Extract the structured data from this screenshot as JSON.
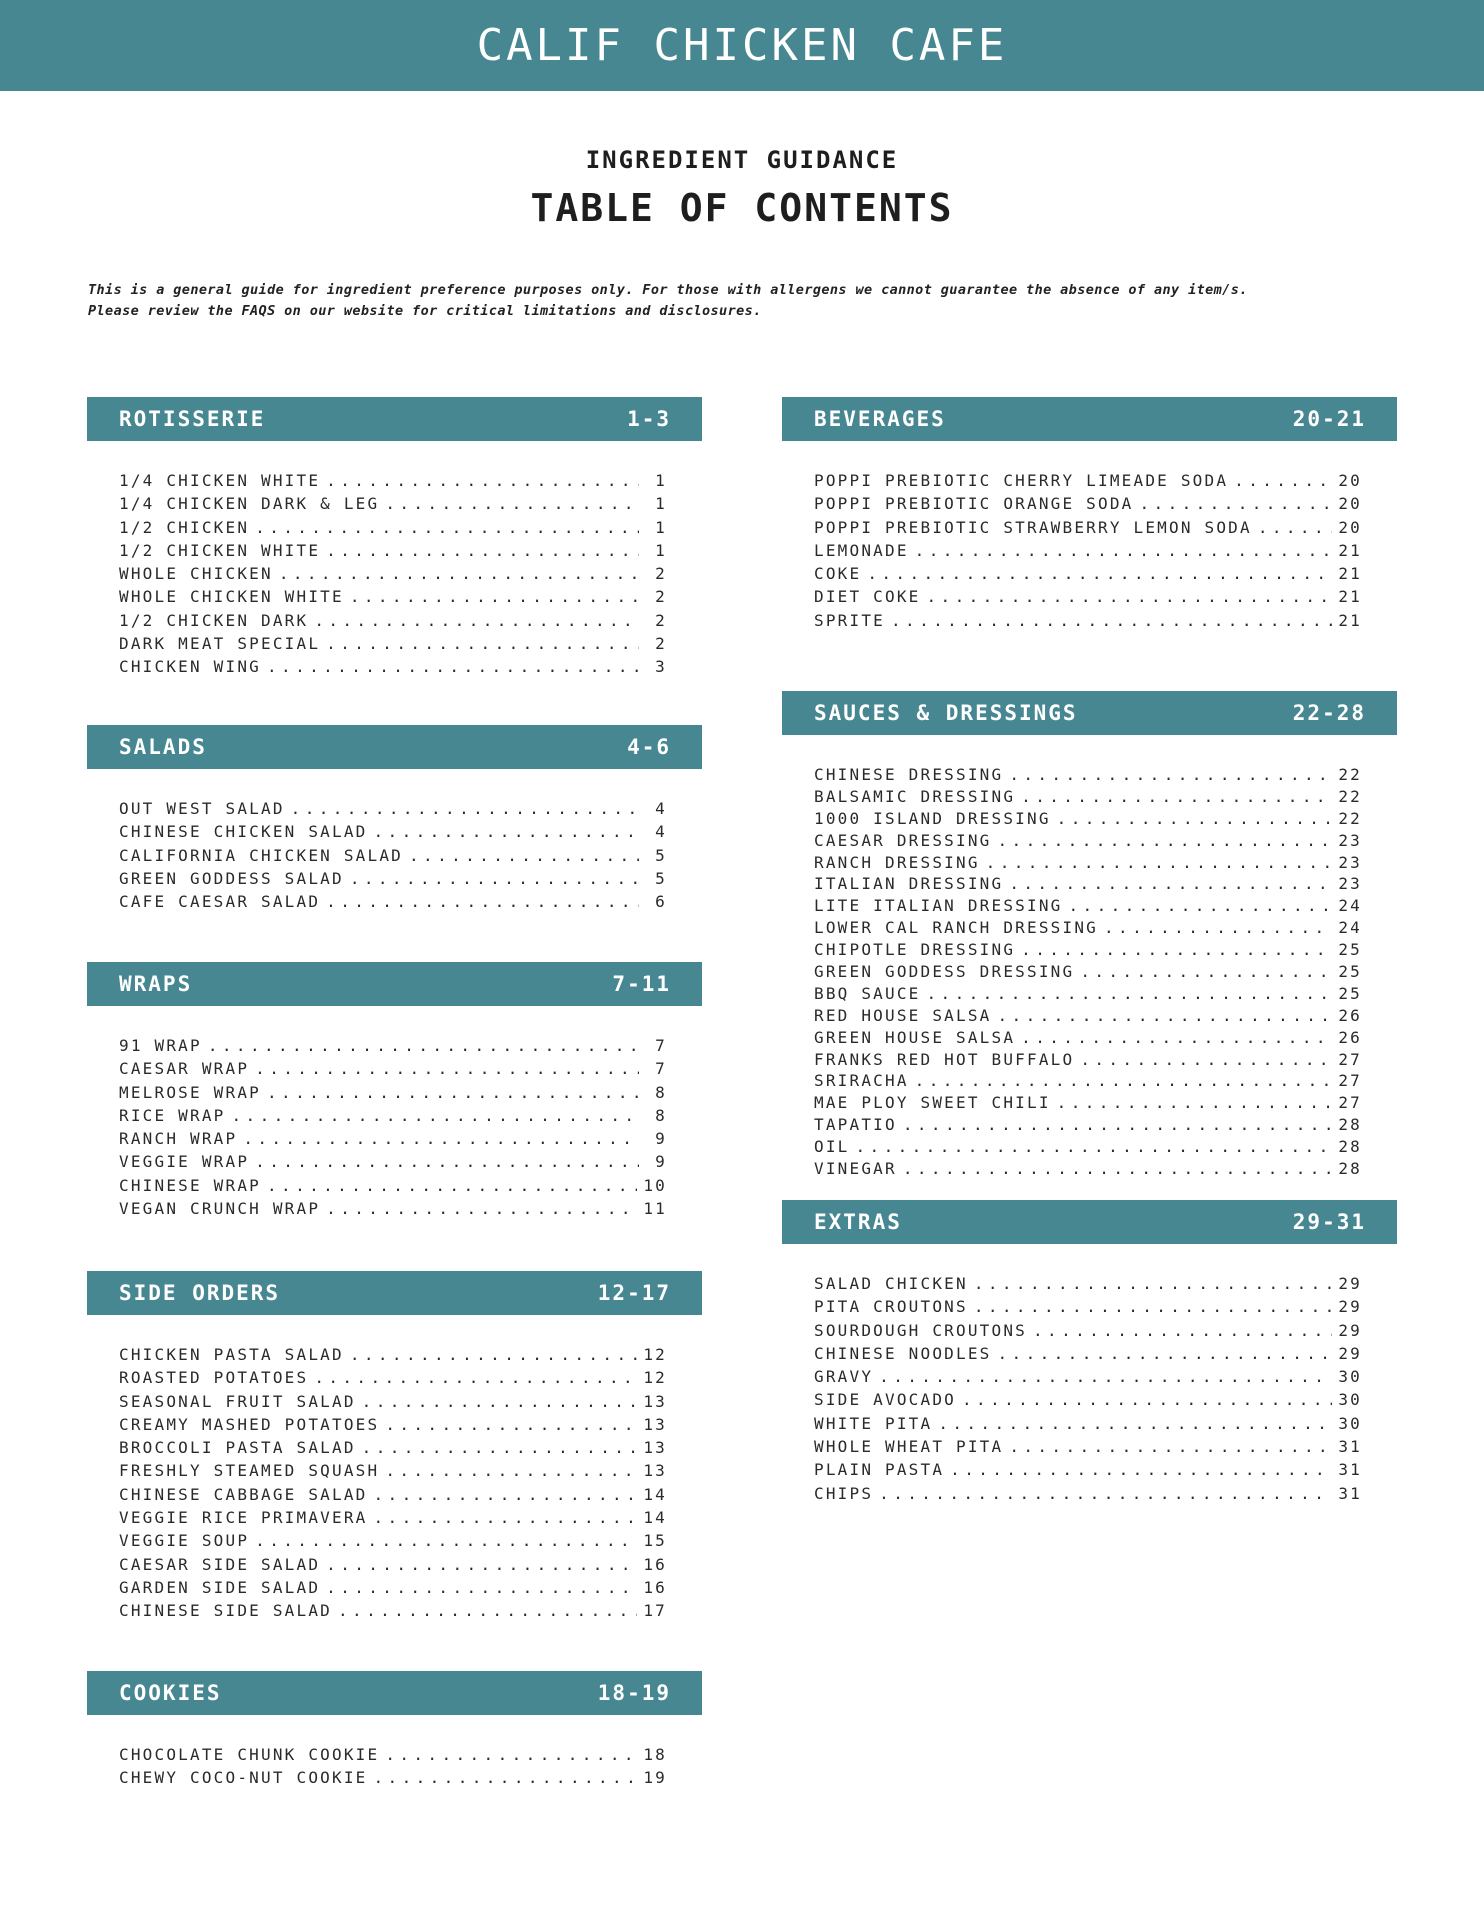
{
  "header": {
    "title": "CALIF CHICKEN CAFE",
    "subtitle": "INGREDIENT GUIDANCE",
    "heading": "TABLE OF CONTENTS"
  },
  "disclaimer": [
    "This is a general guide for ingredient preference purposes only. For those with allergens we cannot guarantee the absence of any item/s.",
    "Please review the FAQS on our website for critical limitations and disclosures."
  ],
  "colors": {
    "accent": "#468791"
  },
  "sections": [
    {
      "title": "ROTISSERIE",
      "pages": "1-3",
      "items": [
        [
          "1/4 CHICKEN WHITE",
          "1"
        ],
        [
          "1/4 CHICKEN DARK & LEG",
          "1"
        ],
        [
          "1/2 CHICKEN",
          "1"
        ],
        [
          "1/2 CHICKEN WHITE",
          "1"
        ],
        [
          "WHOLE CHICKEN",
          "2"
        ],
        [
          "WHOLE CHICKEN WHITE",
          "2"
        ],
        [
          "1/2 CHICKEN DARK",
          "2"
        ],
        [
          "DARK MEAT SPECIAL",
          "2"
        ],
        [
          "CHICKEN WING",
          "3"
        ]
      ]
    },
    {
      "title": "SALADS",
      "pages": "4-6",
      "items": [
        [
          "OUT WEST SALAD",
          "4"
        ],
        [
          "CHINESE CHICKEN SALAD",
          "4"
        ],
        [
          "CALIFORNIA CHICKEN SALAD",
          "5"
        ],
        [
          "GREEN GODDESS SALAD",
          "5"
        ],
        [
          "CAFE CAESAR SALAD",
          "6"
        ]
      ]
    },
    {
      "title": "WRAPS",
      "pages": "7-11",
      "items": [
        [
          "91 WRAP",
          "7"
        ],
        [
          "CAESAR WRAP",
          "7"
        ],
        [
          "MELROSE WRAP",
          "8"
        ],
        [
          "RICE WRAP",
          "8"
        ],
        [
          "RANCH WRAP",
          "9"
        ],
        [
          "VEGGIE WRAP",
          "9"
        ],
        [
          "CHINESE WRAP",
          "10"
        ],
        [
          "VEGAN CRUNCH WRAP",
          "11"
        ]
      ]
    },
    {
      "title": "SIDE ORDERS",
      "pages": "12-17",
      "items": [
        [
          "CHICKEN PASTA SALAD",
          "12"
        ],
        [
          "ROASTED POTATOES",
          "12"
        ],
        [
          "SEASONAL FRUIT SALAD",
          "13"
        ],
        [
          "CREAMY MASHED POTATOES",
          "13"
        ],
        [
          "BROCCOLI PASTA SALAD",
          "13"
        ],
        [
          "FRESHLY STEAMED SQUASH",
          "13"
        ],
        [
          "CHINESE CABBAGE SALAD",
          "14"
        ],
        [
          "VEGGIE RICE PRIMAVERA",
          "14"
        ],
        [
          "VEGGIE SOUP",
          "15"
        ],
        [
          "CAESAR SIDE SALAD",
          "16"
        ],
        [
          "GARDEN SIDE SALAD",
          "16"
        ],
        [
          "CHINESE SIDE SALAD",
          "17"
        ]
      ]
    },
    {
      "title": "COOKIES",
      "pages": "18-19",
      "items": [
        [
          "CHOCOLATE CHUNK COOKIE",
          "18"
        ],
        [
          "CHEWY COCO-NUT COOKIE",
          "19"
        ]
      ]
    },
    {
      "title": "BEVERAGES",
      "pages": "20-21",
      "items": [
        [
          "POPPI PREBIOTIC CHERRY LIMEADE SODA",
          "20"
        ],
        [
          "POPPI PREBIOTIC ORANGE SODA",
          "20"
        ],
        [
          "POPPI PREBIOTIC STRAWBERRY LEMON SODA",
          "20"
        ],
        [
          "LEMONADE",
          "21"
        ],
        [
          "COKE",
          "21"
        ],
        [
          "DIET COKE",
          "21"
        ],
        [
          "SPRITE",
          "21"
        ]
      ]
    },
    {
      "title": "SAUCES & DRESSINGS",
      "pages": "22-28",
      "items": [
        [
          "CHINESE DRESSING",
          "22"
        ],
        [
          "BALSAMIC DRESSING",
          "22"
        ],
        [
          "1000 ISLAND DRESSING",
          "22"
        ],
        [
          "CAESAR DRESSING",
          "23"
        ],
        [
          "RANCH DRESSING",
          "23"
        ],
        [
          "ITALIAN DRESSING",
          "23"
        ],
        [
          "LITE ITALIAN DRESSING",
          "24"
        ],
        [
          "LOWER CAL RANCH DRESSING",
          "24"
        ],
        [
          "CHIPOTLE DRESSING",
          "25"
        ],
        [
          "GREEN GODDESS DRESSING",
          "25"
        ],
        [
          "BBQ SAUCE",
          "25"
        ],
        [
          "RED HOUSE SALSA",
          "26"
        ],
        [
          "GREEN HOUSE SALSA",
          "26"
        ],
        [
          "FRANKS RED HOT BUFFALO",
          "27"
        ],
        [
          "SRIRACHA",
          "27"
        ],
        [
          "MAE PLOY SWEET CHILI",
          "27"
        ],
        [
          "TAPATIO",
          "28"
        ],
        [
          "OIL",
          "28"
        ],
        [
          "VINEGAR",
          "28"
        ]
      ]
    },
    {
      "title": "EXTRAS",
      "pages": "29-31",
      "items": [
        [
          "SALAD CHICKEN",
          "29"
        ],
        [
          "PITA CROUTONS",
          "29"
        ],
        [
          "SOURDOUGH CROUTONS",
          "29"
        ],
        [
          "CHINESE NOODLES",
          "29"
        ],
        [
          "GRAVY",
          "30"
        ],
        [
          "SIDE AVOCADO",
          "30"
        ],
        [
          "WHITE PITA",
          "30"
        ],
        [
          "WHOLE WHEAT PITA",
          "31"
        ],
        [
          "PLAIN PASTA",
          "31"
        ],
        [
          "CHIPS",
          "31"
        ]
      ]
    }
  ]
}
